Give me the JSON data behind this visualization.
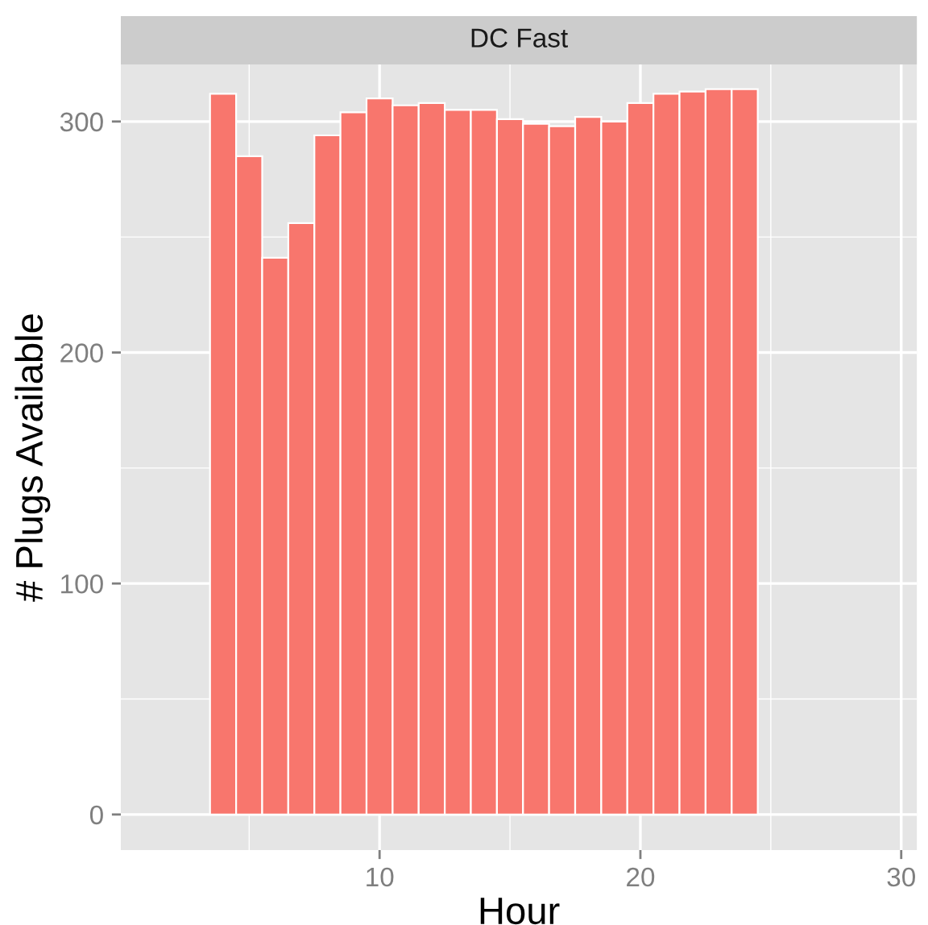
{
  "chart_data": {
    "type": "bar",
    "title": "DC Fast",
    "xlabel": "Hour",
    "ylabel": "# Plugs Available",
    "x": [
      4,
      5,
      6,
      7,
      8,
      9,
      10,
      11,
      12,
      13,
      14,
      15,
      16,
      17,
      18,
      19,
      20,
      21,
      22,
      23,
      24
    ],
    "values": [
      312,
      285,
      241,
      256,
      294,
      304,
      310,
      307,
      308,
      305,
      305,
      301,
      299,
      298,
      302,
      300,
      308,
      312,
      313,
      314,
      314
    ],
    "color": "#f8766d",
    "xlim": [
      0.08,
      30.6
    ],
    "xticks": [
      10,
      20,
      30
    ],
    "ylim": [
      -15.4,
      324.7
    ],
    "yticks": [
      0,
      100,
      200,
      300
    ],
    "grid": true
  }
}
